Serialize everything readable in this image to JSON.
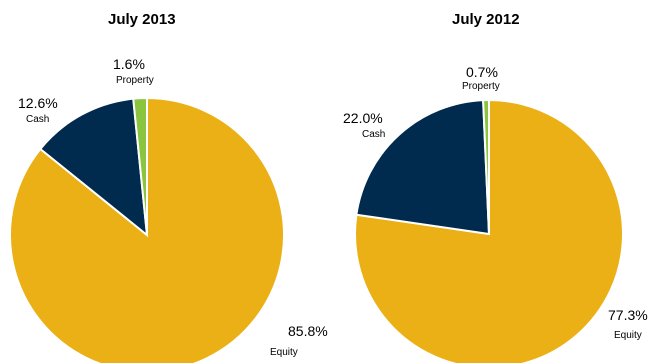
{
  "chart_data": [
    {
      "type": "pie",
      "title": "July 2013",
      "slices": [
        {
          "label": "Equity",
          "value": 85.8,
          "value_label": "85.8%",
          "color": "#EBB015"
        },
        {
          "label": "Cash",
          "value": 12.6,
          "value_label": "12.6%",
          "color": "#002B4F"
        },
        {
          "label": "Property",
          "value": 1.6,
          "value_label": "1.6%",
          "color": "#8BC53F"
        }
      ]
    },
    {
      "type": "pie",
      "title": "July 2012",
      "slices": [
        {
          "label": "Equity",
          "value": 77.3,
          "value_label": "77.3%",
          "color": "#EBB015"
        },
        {
          "label": "Cash",
          "value": 22.0,
          "value_label": "22.0%",
          "color": "#002B4F"
        },
        {
          "label": "Property",
          "value": 0.7,
          "value_label": "0.7%",
          "color": "#8BC53F"
        }
      ]
    }
  ]
}
